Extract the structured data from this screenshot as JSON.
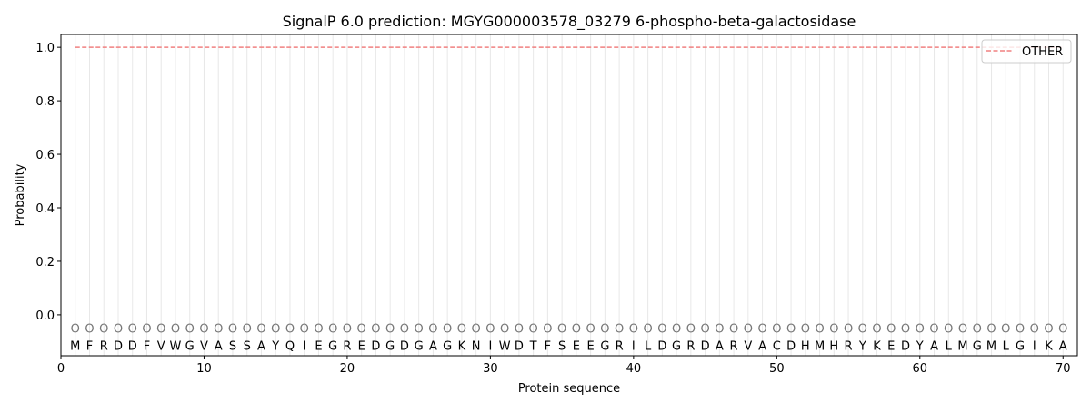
{
  "chart_data": {
    "type": "line",
    "title": "SignalP 6.0 prediction: MGYG000003578_03279 6-phospho-beta-galactosidase",
    "xlabel": "Protein sequence",
    "ylabel": "Probability",
    "xlim": [
      0,
      71
    ],
    "ylim": [
      -0.153,
      1.048
    ],
    "xticks": [
      0,
      10,
      20,
      30,
      40,
      50,
      60,
      70
    ],
    "yticks": [
      "0.0",
      "0.2",
      "0.4",
      "0.6",
      "0.8",
      "1.0"
    ],
    "grid": "vertical lines at each residue",
    "legend_position": "top-right",
    "sequence": [
      "M",
      "F",
      "R",
      "D",
      "D",
      "F",
      "V",
      "W",
      "G",
      "V",
      "A",
      "S",
      "S",
      "A",
      "Y",
      "Q",
      "I",
      "E",
      "G",
      "R",
      "E",
      "D",
      "G",
      "D",
      "G",
      "A",
      "G",
      "K",
      "N",
      "I",
      "W",
      "D",
      "T",
      "F",
      "S",
      "E",
      "E",
      "G",
      "R",
      "I",
      "L",
      "D",
      "G",
      "R",
      "D",
      "A",
      "R",
      "V",
      "A",
      "C",
      "D",
      "H",
      "M",
      "H",
      "R",
      "Y",
      "K",
      "E",
      "D",
      "Y",
      "A",
      "L",
      "M",
      "G",
      "M",
      "L",
      "G",
      "I",
      "K",
      "A"
    ],
    "prediction_label": "O",
    "series": [
      {
        "name": "OTHER",
        "color": "#f08080",
        "style": "dashed",
        "x_range": [
          1,
          70
        ],
        "value": 1.0
      }
    ]
  }
}
